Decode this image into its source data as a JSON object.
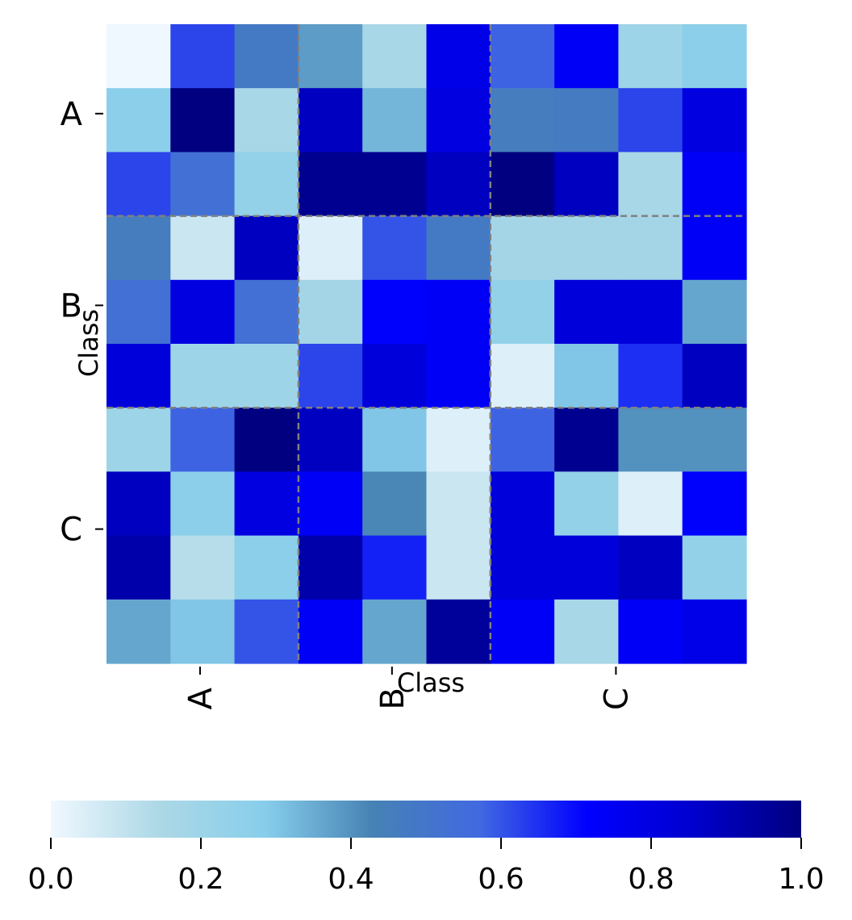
{
  "chart_data": {
    "type": "heatmap",
    "title": "",
    "xlabel": "Class",
    "ylabel": "Class",
    "x_tick_labels": [
      "A",
      "B",
      "C"
    ],
    "y_tick_labels": [
      "A",
      "B",
      "C"
    ],
    "group_sizes": [
      3,
      3,
      4
    ],
    "group_separators": "gray-dashed",
    "values": [
      [
        0.0,
        0.62,
        0.48,
        0.38,
        0.16,
        0.78,
        0.58,
        0.74,
        0.2,
        0.27
      ],
      [
        0.27,
        1.0,
        0.16,
        0.88,
        0.33,
        0.8,
        0.46,
        0.47,
        0.62,
        0.8
      ],
      [
        0.62,
        0.53,
        0.24,
        0.97,
        0.97,
        0.88,
        1.0,
        0.88,
        0.16,
        0.74
      ],
      [
        0.46,
        0.08,
        0.88,
        0.04,
        0.6,
        0.48,
        0.18,
        0.18,
        0.18,
        0.74
      ],
      [
        0.53,
        0.8,
        0.53,
        0.18,
        0.72,
        0.74,
        0.24,
        0.82,
        0.82,
        0.36
      ],
      [
        0.82,
        0.2,
        0.2,
        0.62,
        0.82,
        0.74,
        0.04,
        0.3,
        0.65,
        0.88
      ],
      [
        0.2,
        0.58,
        1.0,
        0.88,
        0.3,
        0.04,
        0.58,
        0.97,
        0.4,
        0.4
      ],
      [
        0.88,
        0.27,
        0.8,
        0.74,
        0.42,
        0.08,
        0.82,
        0.24,
        0.04,
        0.72
      ],
      [
        0.92,
        0.12,
        0.27,
        0.92,
        0.67,
        0.08,
        0.82,
        0.82,
        0.88,
        0.24
      ],
      [
        0.36,
        0.3,
        0.6,
        0.74,
        0.36,
        0.95,
        0.74,
        0.16,
        0.74,
        0.78
      ]
    ],
    "colorbar": {
      "range": [
        0,
        1
      ],
      "ticks": [
        0.0,
        0.2,
        0.4,
        0.6,
        0.8,
        1.0
      ],
      "tick_labels": [
        "0.0",
        "0.2",
        "0.4",
        "0.6",
        "0.8",
        "1.0"
      ],
      "placement": "bottom",
      "colors": [
        "#f0f8ff",
        "#add8e6",
        "#87ceeb",
        "#4682b4",
        "#4169e1",
        "#0000ff",
        "#0000cd",
        "#000080"
      ]
    }
  }
}
